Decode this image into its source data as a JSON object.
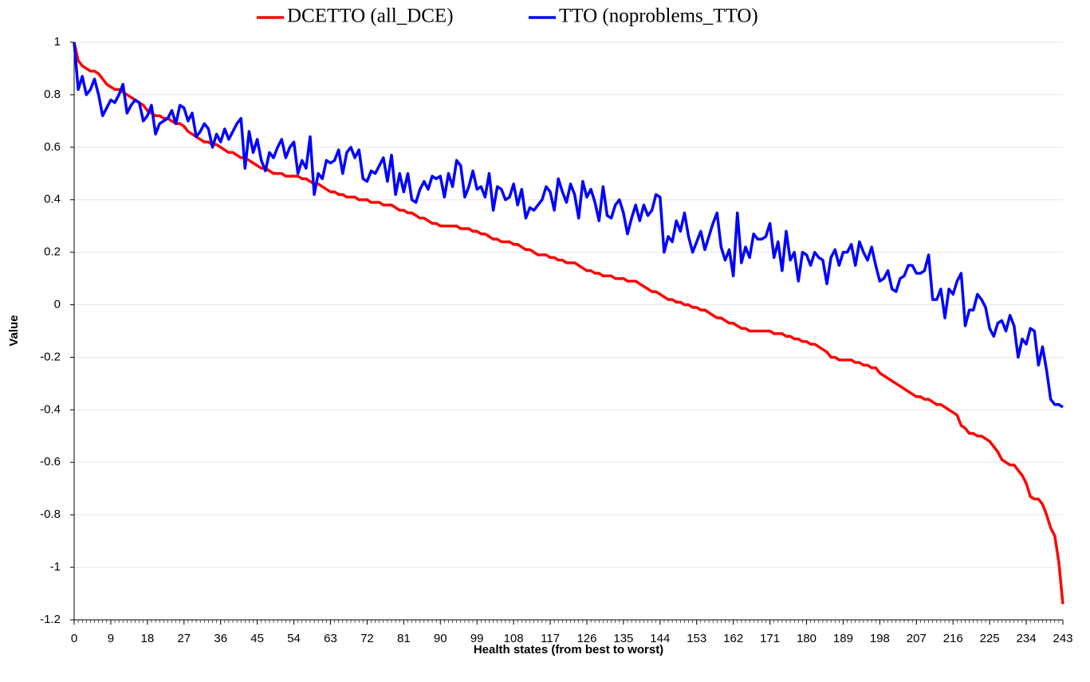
{
  "chart_data": {
    "type": "line",
    "x_label": "Health states (from best to worst)",
    "y_label": "Value",
    "xlim": [
      0,
      243
    ],
    "ylim": [
      -1.2,
      1
    ],
    "xticks": [
      0,
      9,
      18,
      27,
      36,
      45,
      54,
      63,
      72,
      81,
      90,
      99,
      108,
      117,
      126,
      135,
      144,
      153,
      162,
      171,
      180,
      189,
      198,
      207,
      216,
      225,
      234,
      243
    ],
    "yticks": [
      -1.2,
      -1,
      -0.8,
      -0.6,
      -0.4,
      -0.2,
      0,
      0.2,
      0.4,
      0.6,
      0.8,
      1
    ],
    "grid": true,
    "legend": "top",
    "x": [
      0,
      1,
      2,
      3,
      4,
      5,
      6,
      7,
      8,
      9,
      10,
      11,
      12,
      13,
      14,
      15,
      16,
      17,
      18,
      19,
      20,
      21,
      22,
      23,
      24,
      25,
      26,
      27,
      28,
      29,
      30,
      31,
      32,
      33,
      34,
      35,
      36,
      37,
      38,
      39,
      40,
      41,
      42,
      43,
      44,
      45,
      46,
      47,
      48,
      49,
      50,
      51,
      52,
      53,
      54,
      55,
      56,
      57,
      58,
      59,
      60,
      61,
      62,
      63,
      64,
      65,
      66,
      67,
      68,
      69,
      70,
      71,
      72,
      73,
      74,
      75,
      76,
      77,
      78,
      79,
      80,
      81,
      82,
      83,
      84,
      85,
      86,
      87,
      88,
      89,
      90,
      91,
      92,
      93,
      94,
      95,
      96,
      97,
      98,
      99,
      100,
      101,
      102,
      103,
      104,
      105,
      106,
      107,
      108,
      109,
      110,
      111,
      112,
      113,
      114,
      115,
      116,
      117,
      118,
      119,
      120,
      121,
      122,
      123,
      124,
      125,
      126,
      127,
      128,
      129,
      130,
      131,
      132,
      133,
      134,
      135,
      136,
      137,
      138,
      139,
      140,
      141,
      142,
      143,
      144,
      145,
      146,
      147,
      148,
      149,
      150,
      151,
      152,
      153,
      154,
      155,
      156,
      157,
      158,
      159,
      160,
      161,
      162,
      163,
      164,
      165,
      166,
      167,
      168,
      169,
      170,
      171,
      172,
      173,
      174,
      175,
      176,
      177,
      178,
      179,
      180,
      181,
      182,
      183,
      184,
      185,
      186,
      187,
      188,
      189,
      190,
      191,
      192,
      193,
      194,
      195,
      196,
      197,
      198,
      199,
      200,
      201,
      202,
      203,
      204,
      205,
      206,
      207,
      208,
      209,
      210,
      211,
      212,
      213,
      214,
      215,
      216,
      217,
      218,
      219,
      220,
      221,
      222,
      223,
      224,
      225,
      226,
      227,
      228,
      229,
      230,
      231,
      232,
      233,
      234,
      235,
      236,
      237,
      238,
      239,
      240,
      241,
      242,
      243
    ],
    "series": [
      {
        "name": "DCETTO (all_DCE)",
        "color": "#ff0000",
        "values": [
          1.0,
          0.93,
          0.91,
          0.9,
          0.89,
          0.89,
          0.88,
          0.86,
          0.84,
          0.83,
          0.82,
          0.82,
          0.81,
          0.8,
          0.79,
          0.78,
          0.77,
          0.76,
          0.74,
          0.73,
          0.72,
          0.72,
          0.71,
          0.71,
          0.7,
          0.69,
          0.69,
          0.68,
          0.66,
          0.65,
          0.64,
          0.63,
          0.62,
          0.62,
          0.61,
          0.61,
          0.6,
          0.59,
          0.58,
          0.58,
          0.57,
          0.56,
          0.56,
          0.55,
          0.54,
          0.53,
          0.52,
          0.52,
          0.51,
          0.5,
          0.5,
          0.5,
          0.49,
          0.49,
          0.49,
          0.49,
          0.48,
          0.48,
          0.47,
          0.46,
          0.46,
          0.45,
          0.44,
          0.43,
          0.43,
          0.42,
          0.42,
          0.41,
          0.41,
          0.41,
          0.4,
          0.4,
          0.4,
          0.39,
          0.39,
          0.39,
          0.38,
          0.38,
          0.38,
          0.37,
          0.36,
          0.36,
          0.35,
          0.35,
          0.34,
          0.33,
          0.33,
          0.32,
          0.31,
          0.31,
          0.3,
          0.3,
          0.3,
          0.3,
          0.3,
          0.29,
          0.29,
          0.29,
          0.28,
          0.28,
          0.27,
          0.27,
          0.26,
          0.25,
          0.25,
          0.24,
          0.24,
          0.24,
          0.23,
          0.23,
          0.22,
          0.21,
          0.21,
          0.2,
          0.19,
          0.19,
          0.19,
          0.18,
          0.18,
          0.17,
          0.17,
          0.16,
          0.16,
          0.16,
          0.15,
          0.14,
          0.13,
          0.13,
          0.12,
          0.12,
          0.11,
          0.11,
          0.11,
          0.1,
          0.1,
          0.1,
          0.09,
          0.09,
          0.09,
          0.08,
          0.07,
          0.06,
          0.05,
          0.05,
          0.04,
          0.03,
          0.02,
          0.02,
          0.01,
          0.01,
          0.0,
          0.0,
          -0.01,
          -0.01,
          -0.02,
          -0.02,
          -0.03,
          -0.04,
          -0.05,
          -0.05,
          -0.06,
          -0.07,
          -0.07,
          -0.08,
          -0.09,
          -0.09,
          -0.1,
          -0.1,
          -0.1,
          -0.1,
          -0.1,
          -0.1,
          -0.11,
          -0.11,
          -0.11,
          -0.12,
          -0.12,
          -0.13,
          -0.13,
          -0.14,
          -0.14,
          -0.15,
          -0.15,
          -0.16,
          -0.17,
          -0.18,
          -0.2,
          -0.2,
          -0.21,
          -0.21,
          -0.21,
          -0.21,
          -0.22,
          -0.22,
          -0.23,
          -0.23,
          -0.24,
          -0.24,
          -0.26,
          -0.27,
          -0.28,
          -0.29,
          -0.3,
          -0.31,
          -0.32,
          -0.33,
          -0.34,
          -0.35,
          -0.35,
          -0.36,
          -0.36,
          -0.37,
          -0.38,
          -0.38,
          -0.39,
          -0.4,
          -0.41,
          -0.42,
          -0.46,
          -0.47,
          -0.49,
          -0.49,
          -0.5,
          -0.5,
          -0.51,
          -0.52,
          -0.54,
          -0.56,
          -0.59,
          -0.6,
          -0.61,
          -0.61,
          -0.63,
          -0.65,
          -0.68,
          -0.73,
          -0.74,
          -0.74,
          -0.76,
          -0.8,
          -0.85,
          -0.88,
          -0.98,
          -1.14
        ]
      },
      {
        "name": "TTO (noproblems_TTO)",
        "color": "#0000ff",
        "values": [
          1.0,
          0.82,
          0.87,
          0.8,
          0.82,
          0.86,
          0.8,
          0.72,
          0.75,
          0.78,
          0.77,
          0.8,
          0.84,
          0.73,
          0.76,
          0.78,
          0.77,
          0.7,
          0.72,
          0.76,
          0.65,
          0.69,
          0.7,
          0.71,
          0.74,
          0.69,
          0.76,
          0.75,
          0.7,
          0.73,
          0.64,
          0.66,
          0.69,
          0.67,
          0.6,
          0.65,
          0.62,
          0.67,
          0.63,
          0.66,
          0.69,
          0.71,
          0.52,
          0.66,
          0.58,
          0.63,
          0.55,
          0.51,
          0.58,
          0.56,
          0.6,
          0.63,
          0.56,
          0.6,
          0.62,
          0.5,
          0.55,
          0.52,
          0.64,
          0.42,
          0.5,
          0.48,
          0.55,
          0.54,
          0.55,
          0.59,
          0.5,
          0.58,
          0.6,
          0.56,
          0.59,
          0.48,
          0.47,
          0.51,
          0.5,
          0.53,
          0.56,
          0.47,
          0.57,
          0.42,
          0.5,
          0.43,
          0.5,
          0.4,
          0.39,
          0.44,
          0.47,
          0.44,
          0.49,
          0.48,
          0.49,
          0.41,
          0.5,
          0.45,
          0.55,
          0.53,
          0.41,
          0.45,
          0.51,
          0.44,
          0.45,
          0.41,
          0.5,
          0.36,
          0.45,
          0.44,
          0.4,
          0.41,
          0.46,
          0.38,
          0.44,
          0.33,
          0.37,
          0.36,
          0.38,
          0.4,
          0.45,
          0.43,
          0.36,
          0.48,
          0.43,
          0.39,
          0.46,
          0.42,
          0.33,
          0.47,
          0.41,
          0.44,
          0.39,
          0.32,
          0.45,
          0.34,
          0.33,
          0.38,
          0.4,
          0.35,
          0.27,
          0.33,
          0.38,
          0.32,
          0.38,
          0.34,
          0.36,
          0.42,
          0.41,
          0.2,
          0.26,
          0.24,
          0.32,
          0.28,
          0.35,
          0.26,
          0.2,
          0.24,
          0.28,
          0.21,
          0.26,
          0.31,
          0.35,
          0.22,
          0.17,
          0.21,
          0.11,
          0.35,
          0.16,
          0.22,
          0.18,
          0.27,
          0.25,
          0.25,
          0.26,
          0.31,
          0.18,
          0.24,
          0.13,
          0.28,
          0.17,
          0.2,
          0.09,
          0.2,
          0.19,
          0.15,
          0.2,
          0.18,
          0.17,
          0.08,
          0.18,
          0.21,
          0.15,
          0.2,
          0.2,
          0.23,
          0.15,
          0.24,
          0.2,
          0.17,
          0.22,
          0.15,
          0.09,
          0.1,
          0.13,
          0.06,
          0.05,
          0.1,
          0.11,
          0.15,
          0.15,
          0.12,
          0.12,
          0.13,
          0.19,
          0.02,
          0.02,
          0.06,
          -0.05,
          0.06,
          0.04,
          0.09,
          0.12,
          -0.08,
          -0.02,
          -0.02,
          0.04,
          0.02,
          -0.01,
          -0.09,
          -0.12,
          -0.07,
          -0.06,
          -0.1,
          -0.04,
          -0.08,
          -0.2,
          -0.13,
          -0.15,
          -0.09,
          -0.1,
          -0.23,
          -0.16,
          -0.25,
          -0.36,
          -0.38,
          -0.38,
          -0.39
        ]
      }
    ]
  }
}
